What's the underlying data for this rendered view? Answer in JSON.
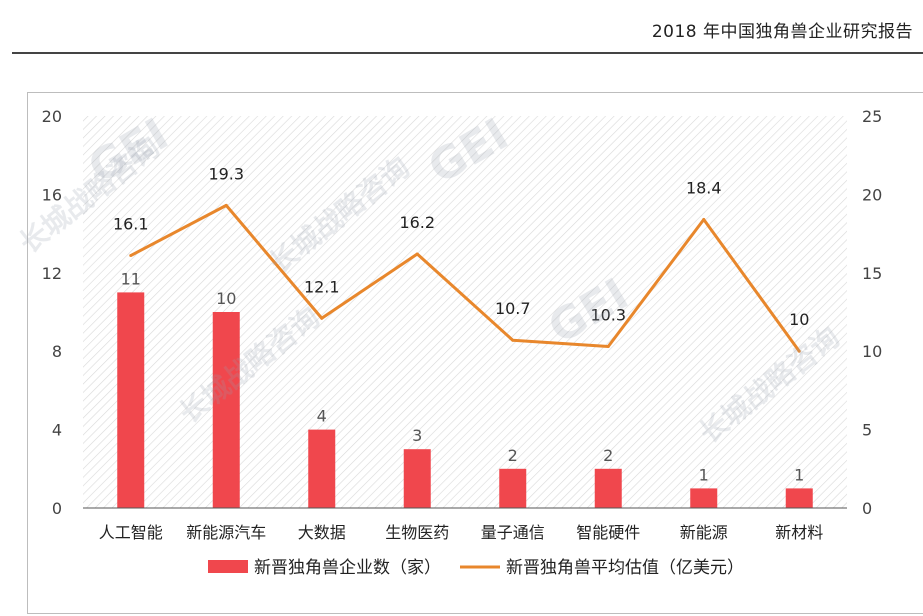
{
  "header": {
    "title": "2018 年中国独角兽企业研究报告"
  },
  "watermark": {
    "logo": "GEI",
    "brand": "长城战略咨询"
  },
  "colors": {
    "bar": "#f0474d",
    "line": "#e8872c",
    "axis": "#444444",
    "grid": "#d7d7d7"
  },
  "chart_data": {
    "type": "bar",
    "categories": [
      "人工智能",
      "新能源汽车",
      "大数据",
      "生物医药",
      "量子通信",
      "智能硬件",
      "新能源",
      "新材料"
    ],
    "series": [
      {
        "name": "新晋独角兽企业数（家）",
        "type": "bar",
        "axis": "left",
        "values": [
          11,
          10,
          4,
          3,
          2,
          2,
          1,
          1
        ]
      },
      {
        "name": "新晋独角兽平均估值（亿美元）",
        "type": "line",
        "axis": "right",
        "values": [
          16.1,
          19.3,
          12.1,
          16.2,
          10.7,
          10.3,
          18.4,
          10
        ]
      }
    ],
    "y_left": {
      "ticks": [
        "0",
        "4",
        "8",
        "12",
        "16",
        "20"
      ],
      "ylim": [
        0,
        20
      ]
    },
    "y_right": {
      "ticks": [
        "0",
        "5",
        "10",
        "15",
        "20",
        "25"
      ],
      "ylim": [
        0,
        25
      ]
    },
    "grid": false,
    "legend": {
      "position": "bottom",
      "items": [
        "新晋独角兽企业数（家）",
        "新晋独角兽平均估值（亿美元）"
      ]
    }
  }
}
